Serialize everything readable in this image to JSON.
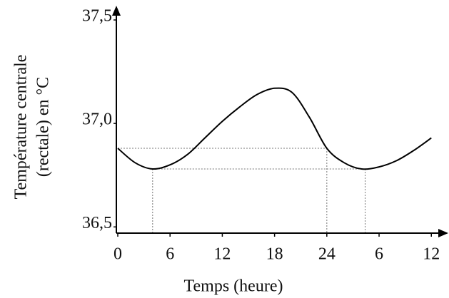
{
  "chart_data": {
    "type": "line",
    "y_label": [
      "Température centrale",
      "(rectale) en °C"
    ],
    "x_label": "Temps (heure)",
    "x": [
      0,
      2,
      4,
      6,
      8,
      10,
      12,
      14,
      16,
      18,
      20,
      22,
      24,
      26,
      28,
      30,
      32,
      34,
      36
    ],
    "values": [
      36.88,
      36.81,
      36.78,
      36.8,
      36.85,
      36.93,
      37.01,
      37.08,
      37.14,
      37.17,
      37.15,
      37.03,
      36.88,
      36.81,
      36.78,
      36.79,
      36.82,
      36.87,
      36.93
    ],
    "color": "#000000",
    "xlim": [
      0,
      37.7
    ],
    "ylim": [
      36.47,
      37.5
    ],
    "xticks": [
      0,
      6,
      12,
      18,
      24,
      {
        "value": 30,
        "label": "6"
      },
      {
        "value": 36,
        "label": "12"
      }
    ],
    "yticks": [
      {
        "value": 36.5,
        "label": "36,5"
      },
      {
        "value": 37.0,
        "label": "37,0"
      },
      {
        "value": 37.5,
        "label": "37,5"
      }
    ],
    "guides": [
      {
        "x": [
          0,
          24
        ],
        "y": 36.88
      },
      {
        "x": [
          4,
          28.4
        ],
        "y": 36.78
      }
    ]
  }
}
